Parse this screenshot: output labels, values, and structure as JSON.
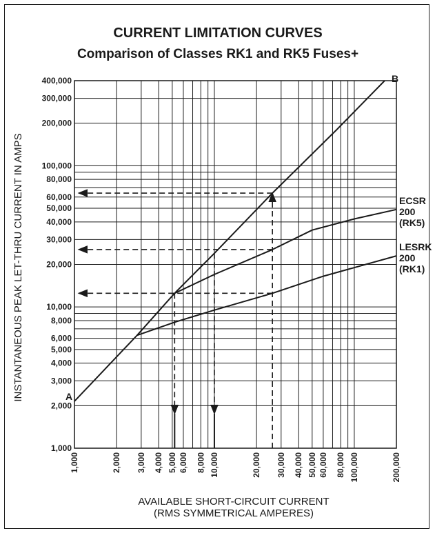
{
  "chart_data": {
    "type": "line",
    "title": "CURRENT LIMITATION CURVES",
    "subtitle": "Comparison of Classes RK1 and RK5 Fuses+",
    "xlabel_line1": "AVAILABLE SHORT-CIRCUIT CURRENT",
    "xlabel_line2": "(RMS SYMMETRICAL AMPERES)",
    "ylabel": "INSTANTANEOUS PEAK LET-THRU CURRENT IN AMPS",
    "x_scale": "log",
    "y_scale": "log",
    "xlim": [
      1000,
      200000
    ],
    "ylim": [
      1000,
      400000
    ],
    "grid": true,
    "x_ticks": [
      {
        "v": 1000,
        "label": "1,000"
      },
      {
        "v": 2000,
        "label": "2,000"
      },
      {
        "v": 3000,
        "label": "3,000"
      },
      {
        "v": 4000,
        "label": "4,000"
      },
      {
        "v": 5000,
        "label": "5,000"
      },
      {
        "v": 6000,
        "label": "6,000"
      },
      {
        "v": 8000,
        "label": "8,000"
      },
      {
        "v": 10000,
        "label": "10,000"
      },
      {
        "v": 20000,
        "label": "20,000"
      },
      {
        "v": 30000,
        "label": "30,000"
      },
      {
        "v": 40000,
        "label": "40,000"
      },
      {
        "v": 50000,
        "label": "50,000"
      },
      {
        "v": 60000,
        "label": "60,000"
      },
      {
        "v": 80000,
        "label": "80,000"
      },
      {
        "v": 100000,
        "label": "100,000"
      },
      {
        "v": 200000,
        "label": "200,000"
      }
    ],
    "x_grid": [
      1000,
      2000,
      3000,
      4000,
      5000,
      6000,
      7000,
      8000,
      9000,
      10000,
      20000,
      30000,
      40000,
      50000,
      60000,
      70000,
      80000,
      90000,
      100000,
      200000
    ],
    "y_ticks": [
      {
        "v": 1000,
        "label": "1,000"
      },
      {
        "v": 2000,
        "label": "2,000"
      },
      {
        "v": 3000,
        "label": "3,000"
      },
      {
        "v": 4000,
        "label": "4,000"
      },
      {
        "v": 5000,
        "label": "5,000"
      },
      {
        "v": 6000,
        "label": "6,000"
      },
      {
        "v": 8000,
        "label": "8,000"
      },
      {
        "v": 10000,
        "label": "10,000"
      },
      {
        "v": 20000,
        "label": "20,000"
      },
      {
        "v": 30000,
        "label": "30,000"
      },
      {
        "v": 40000,
        "label": "40,000"
      },
      {
        "v": 50000,
        "label": "50,000"
      },
      {
        "v": 60000,
        "label": "60,000"
      },
      {
        "v": 80000,
        "label": "80,000"
      },
      {
        "v": 100000,
        "label": "100,000"
      },
      {
        "v": 200000,
        "label": "200,000"
      },
      {
        "v": 300000,
        "label": "300,000"
      },
      {
        "v": 400000,
        "label": "400,000"
      }
    ],
    "y_grid": [
      1000,
      2000,
      3000,
      4000,
      5000,
      6000,
      7000,
      8000,
      9000,
      10000,
      20000,
      30000,
      40000,
      50000,
      60000,
      70000,
      80000,
      90000,
      100000,
      200000,
      300000,
      400000
    ],
    "series": [
      {
        "name": "A-B",
        "color": "#1a1a1a",
        "points": [
          [
            1000,
            2150
          ],
          [
            2800,
            6300
          ],
          [
            5200,
            12500
          ],
          [
            10000,
            24000
          ],
          [
            26000,
            64000
          ],
          [
            75000,
            180000
          ],
          [
            165000,
            400000
          ]
        ]
      },
      {
        "name": "ECSR 200 (RK5)",
        "color": "#1a1a1a",
        "points": [
          [
            5200,
            12500
          ],
          [
            10000,
            17000
          ],
          [
            26000,
            25500
          ],
          [
            50000,
            35000
          ],
          [
            100000,
            42000
          ],
          [
            200000,
            49000
          ]
        ]
      },
      {
        "name": "LESRK 200 (RK1)",
        "color": "#1a1a1a",
        "points": [
          [
            2800,
            6300
          ],
          [
            5200,
            7800
          ],
          [
            10000,
            9500
          ],
          [
            26000,
            12500
          ],
          [
            60000,
            16500
          ],
          [
            200000,
            23000
          ]
        ]
      }
    ],
    "curve_labels": [
      {
        "series": "ECSR 200 (RK5)",
        "lines": [
          "ECSR",
          "200",
          "(RK5)"
        ]
      },
      {
        "series": "LESRK 200 (RK1)",
        "lines": [
          "LESRK",
          "200",
          "(RK1)"
        ]
      }
    ],
    "point_labels": [
      {
        "text": "A",
        "x": 1000,
        "y": 2150
      },
      {
        "text": "B",
        "x": 165000,
        "y": 400000
      }
    ],
    "annotations": [
      {
        "kind": "vertical",
        "x": 5200,
        "y_top": 12500,
        "arrow": "down"
      },
      {
        "kind": "vertical",
        "x": 10000,
        "y_top": 24000,
        "arrow": "down"
      },
      {
        "kind": "vertical",
        "x": 26000,
        "y_top": 64000,
        "arrow": "up"
      },
      {
        "kind": "horizontal",
        "y": 64000,
        "x_right": 26000,
        "arrow": "left"
      },
      {
        "kind": "horizontal",
        "y": 25500,
        "x_right": 26000,
        "arrow": "left"
      },
      {
        "kind": "horizontal",
        "y": 12500,
        "x_right": 26000,
        "arrow": "left"
      }
    ]
  }
}
